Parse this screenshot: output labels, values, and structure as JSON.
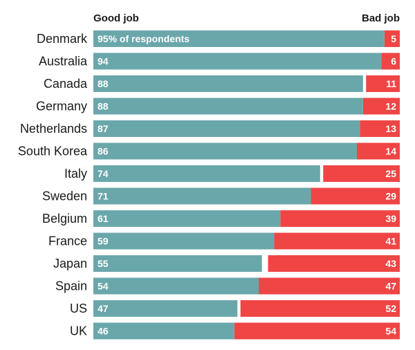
{
  "chart_data": {
    "type": "bar",
    "stacked": true,
    "orientation": "horizontal",
    "title": "",
    "xlabel": "",
    "ylabel": "",
    "xlim": [
      0,
      100
    ],
    "headers": {
      "good": "Good job",
      "bad": "Bad job"
    },
    "first_good_label": "95% of respondents",
    "categories": [
      "Denmark",
      "Australia",
      "Canada",
      "Germany",
      "Netherlands",
      "South Korea",
      "Italy",
      "Sweden",
      "Belgium",
      "France",
      "Japan",
      "Spain",
      "US",
      "UK"
    ],
    "series": [
      {
        "name": "Good job",
        "color": "#6aa7ab",
        "values": [
          95,
          94,
          88,
          88,
          87,
          86,
          74,
          71,
          61,
          59,
          55,
          54,
          47,
          46
        ]
      },
      {
        "name": "Bad job",
        "color": "#f04545",
        "values": [
          5,
          6,
          11,
          12,
          13,
          14,
          25,
          29,
          39,
          41,
          43,
          47,
          52,
          54
        ]
      }
    ]
  }
}
